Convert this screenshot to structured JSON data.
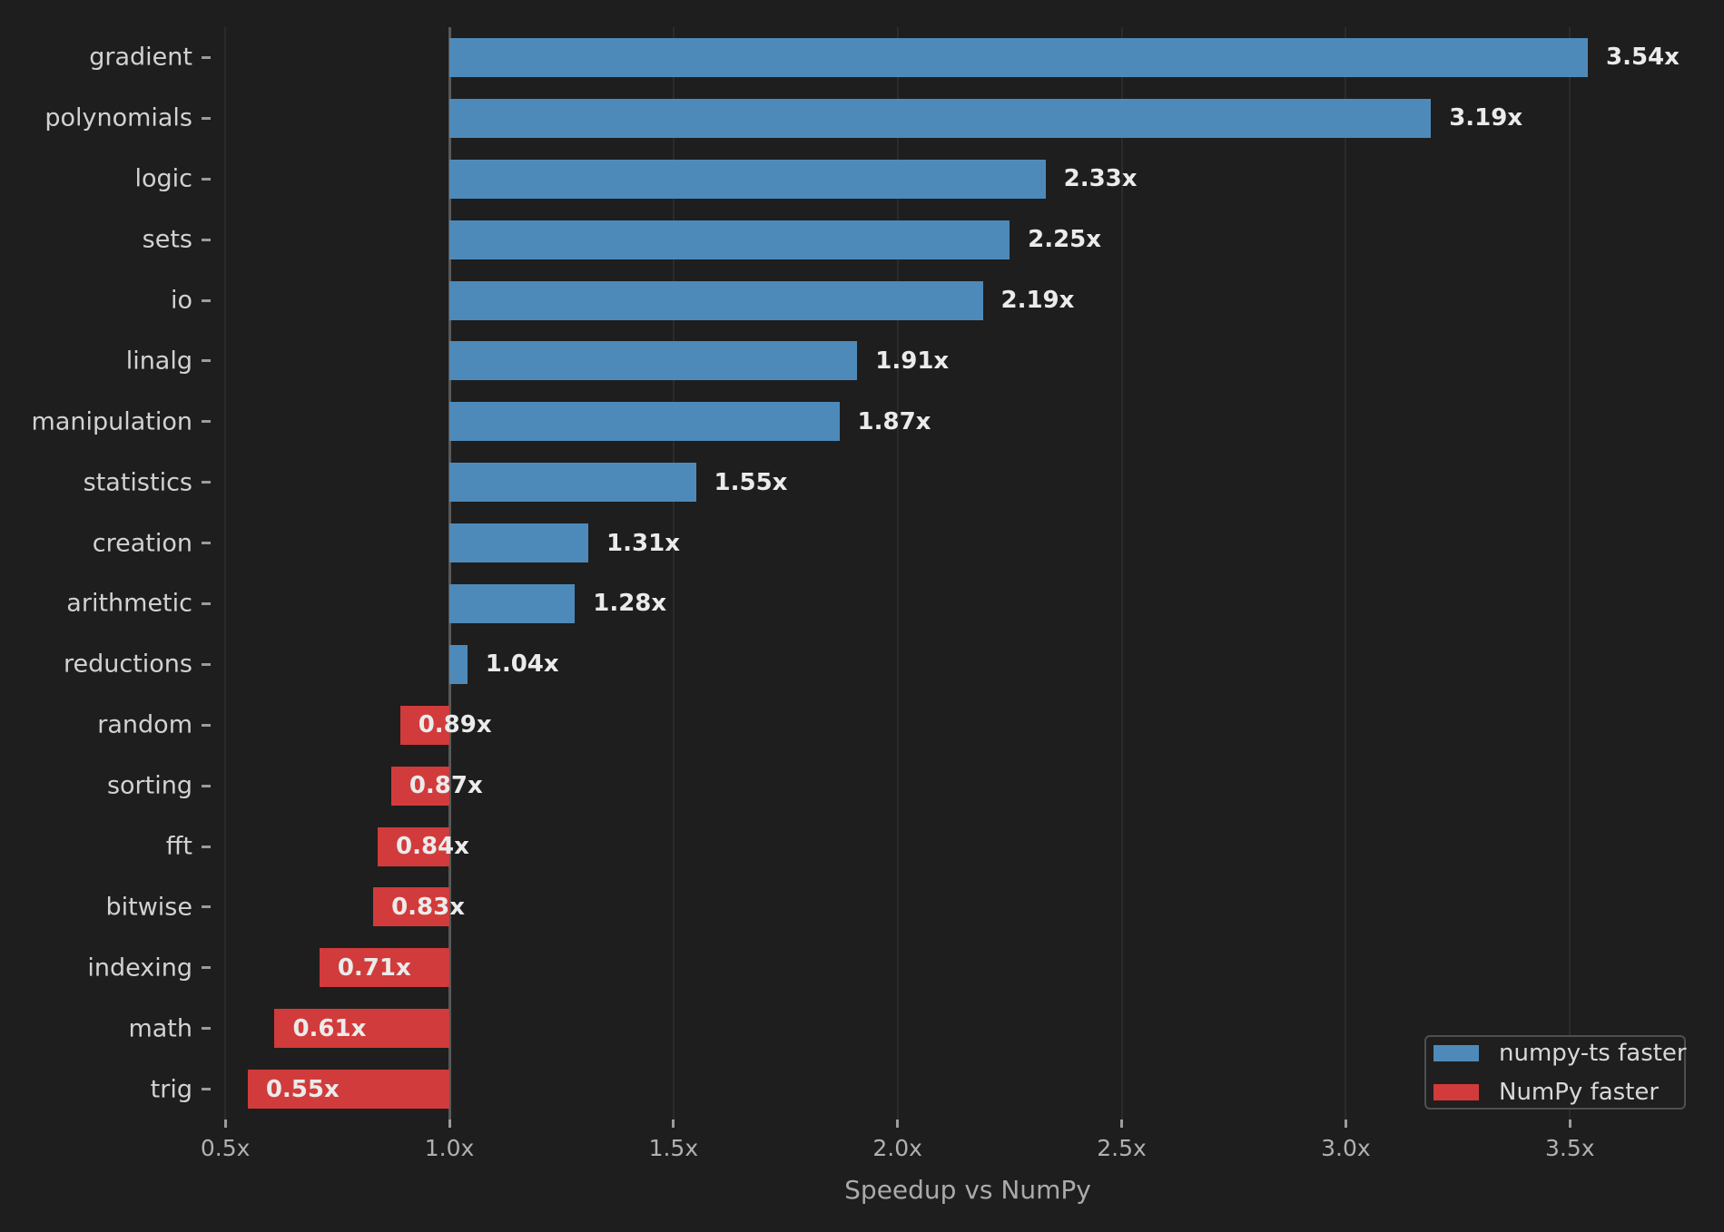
{
  "chart_data": {
    "type": "bar",
    "orientation": "horizontal",
    "xlabel": "Speedup vs NumPy",
    "baseline": 1.0,
    "xlim": [
      0.469,
      3.843
    ],
    "grid": true,
    "categories": [
      "gradient",
      "polynomials",
      "logic",
      "sets",
      "io",
      "linalg",
      "manipulation",
      "statistics",
      "creation",
      "arithmetic",
      "reductions",
      "random",
      "sorting",
      "fft",
      "bitwise",
      "indexing",
      "math",
      "trig"
    ],
    "values": [
      3.54,
      3.19,
      2.33,
      2.25,
      2.19,
      1.91,
      1.87,
      1.55,
      1.31,
      1.28,
      1.04,
      0.89,
      0.87,
      0.84,
      0.83,
      0.71,
      0.61,
      0.55
    ],
    "value_labels": [
      "3.54x",
      "3.19x",
      "2.33x",
      "2.25x",
      "2.19x",
      "1.91x",
      "1.87x",
      "1.55x",
      "1.31x",
      "1.28x",
      "1.04x",
      "0.89x",
      "0.87x",
      "0.84x",
      "0.83x",
      "0.71x",
      "0.61x",
      "0.55x"
    ],
    "xticks": [
      0.5,
      1.0,
      1.5,
      2.0,
      2.5,
      3.0,
      3.5
    ],
    "xtick_labels": [
      "0.5x",
      "1.0x",
      "1.5x",
      "2.0x",
      "2.5x",
      "3.0x",
      "3.5x"
    ],
    "colors": {
      "background": "#1e1e1e",
      "bar_faster": "#4e8ab9",
      "bar_slower": "#d23b3b",
      "baseline_line": "#585858",
      "gridline": "#2b2b2b",
      "tick_mark": "#9c9c9c",
      "category_text": "#d2d2d2",
      "tick_text": "#b1b1b1",
      "value_text": "#ebebeb",
      "axis_title_text": "#aaaaaa"
    },
    "legend": {
      "position": "lower right",
      "entries": [
        {
          "label": "numpy-ts faster",
          "color": "#4e8ab9"
        },
        {
          "label": "NumPy faster",
          "color": "#d23b3b"
        }
      ]
    }
  }
}
